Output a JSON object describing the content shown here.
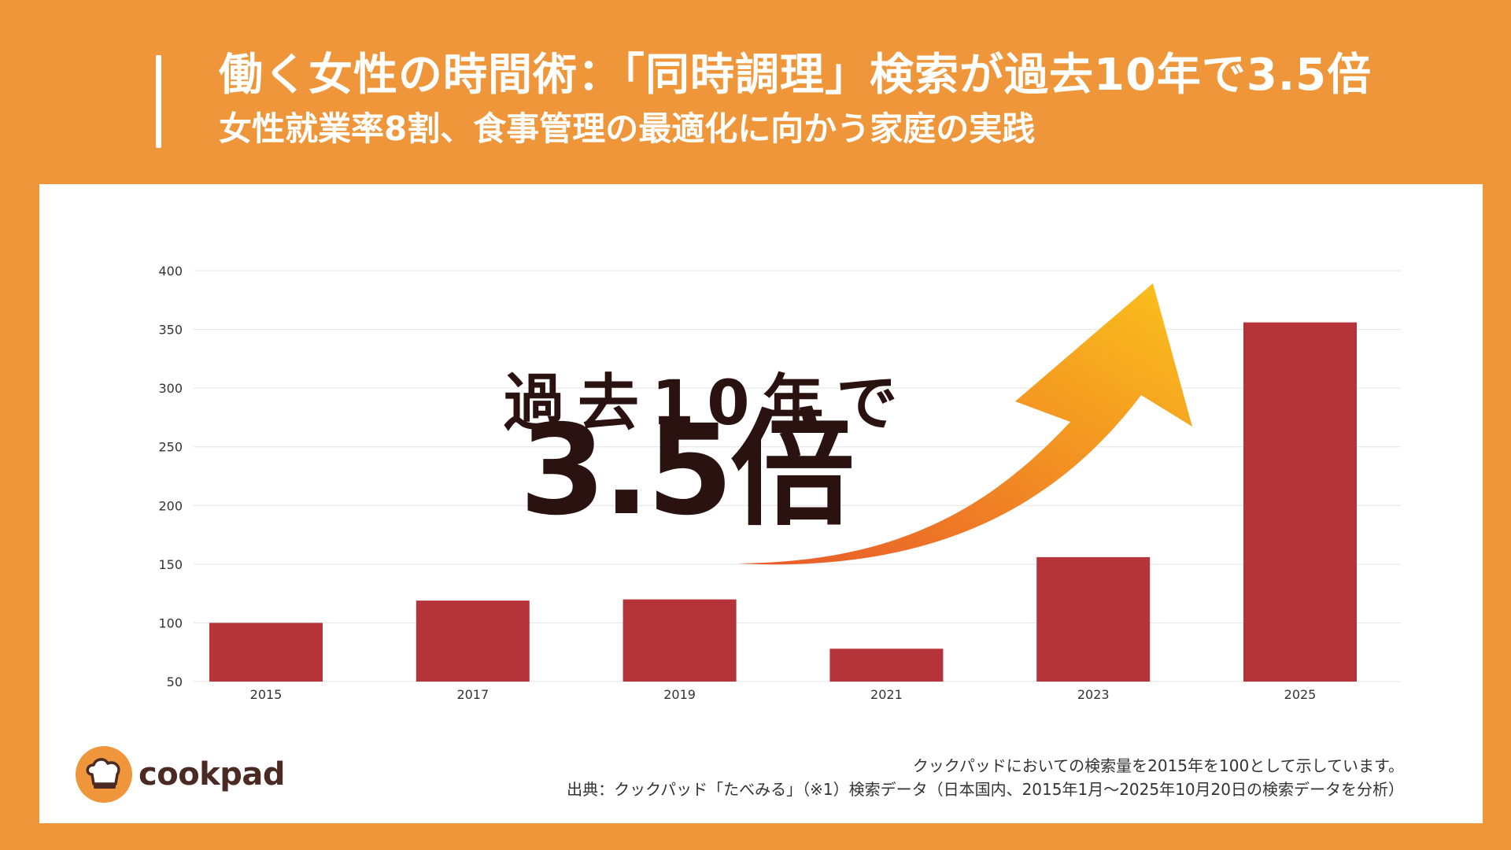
{
  "header": {
    "title": "働く女性の時間術：「同時調理」検索が過去10年で3.5倍",
    "subtitle": "女性就業率8割、食事管理の最適化に向かう家庭の実践"
  },
  "overlay": {
    "line1": "過去10年で",
    "line2": "3.5倍"
  },
  "logo": {
    "text": "cookpad",
    "icon": "chef-hat-icon"
  },
  "notes": {
    "line1": "クックパッドにおいての検索量を2015年を100として示しています。",
    "line2": "出典：クックパッド「たべみる」（※1）検索データ（日本国内、2015年1月～2025年10月20日の検索データを分析）"
  },
  "colors": {
    "background": "#F0963A",
    "bar": "#B5343A",
    "text_dark": "#2A1210",
    "arrow_start": "#E8582A",
    "arrow_end": "#FBC21C"
  },
  "chart_data": {
    "type": "bar",
    "categories": [
      "2015",
      "2017",
      "2019",
      "2021",
      "2023",
      "2025"
    ],
    "values": [
      100,
      119,
      120,
      78,
      156,
      356
    ],
    "title": "",
    "xlabel": "",
    "ylabel": "",
    "ylim": [
      50,
      400
    ],
    "yticks": [
      50,
      100,
      150,
      200,
      250,
      300,
      350,
      400
    ],
    "grid": true,
    "legend": "none"
  }
}
